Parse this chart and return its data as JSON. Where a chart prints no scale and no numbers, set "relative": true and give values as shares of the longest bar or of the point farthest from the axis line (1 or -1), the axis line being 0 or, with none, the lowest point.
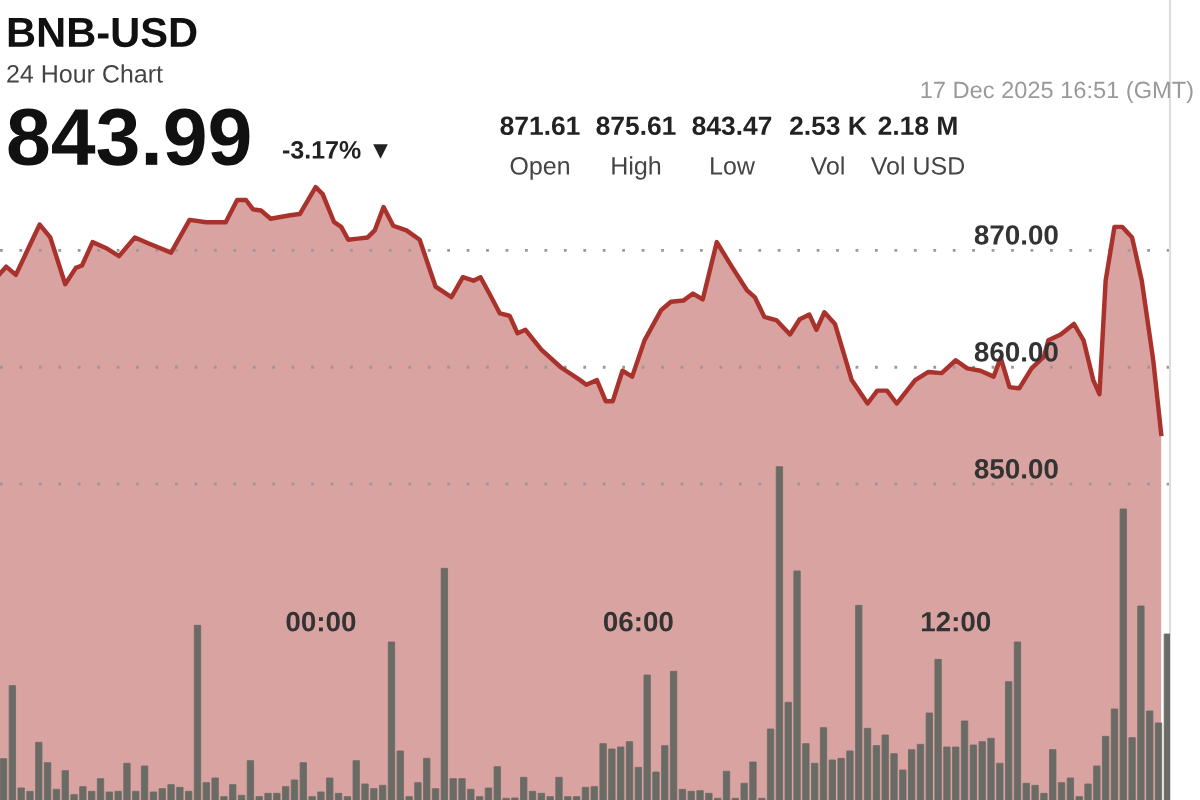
{
  "chart_data": [
    {
      "type": "area",
      "title": "BNB-USD",
      "subtitle": "24 Hour Chart",
      "annotations": [
        "843.99",
        "-3.17% ▼",
        "871.61",
        "Open",
        "875.61",
        "High",
        "843.47",
        "Low",
        "2.53 K",
        "Vol",
        "2.18 M",
        "Vol USD",
        "17 Dec 2025 16:51 (GMT)"
      ],
      "x": [
        "2025-12-16T17:56",
        "2025-12-16T18:03",
        "2025-12-16T18:14",
        "2025-12-16T18:29",
        "2025-12-16T18:41",
        "2025-12-16T18:53",
        "2025-12-16T19:10",
        "2025-12-16T19:22",
        "2025-12-16T19:29",
        "2025-12-16T19:41",
        "2025-12-16T19:56",
        "2025-12-16T20:11",
        "2025-12-16T20:29",
        "2025-12-16T20:44",
        "2025-12-16T21:10",
        "2025-12-16T21:31",
        "2025-12-16T21:50",
        "2025-12-16T22:12",
        "2025-12-16T22:25",
        "2025-12-16T22:35",
        "2025-12-16T22:43",
        "2025-12-16T22:52",
        "2025-12-16T23:03",
        "2025-12-16T23:25",
        "2025-12-16T23:36",
        "2025-12-16T23:54",
        "2025-12-17T00:02",
        "2025-12-17T00:15",
        "2025-12-17T00:23",
        "2025-12-17T00:31",
        "2025-12-17T00:42",
        "2025-12-17T00:53",
        "2025-12-17T01:01",
        "2025-12-17T01:11",
        "2025-12-17T01:22",
        "2025-12-17T01:37",
        "2025-12-17T01:52",
        "2025-12-17T02:10",
        "2025-12-17T02:28",
        "2025-12-17T02:41",
        "2025-12-17T02:53",
        "2025-12-17T03:01",
        "2025-12-17T03:11",
        "2025-12-17T03:23",
        "2025-12-17T03:34",
        "2025-12-17T03:43",
        "2025-12-17T03:52",
        "2025-12-17T04:10",
        "2025-12-17T04:32",
        "2025-12-17T04:54",
        "2025-12-17T05:01",
        "2025-12-17T05:13",
        "2025-12-17T05:23",
        "2025-12-17T05:31",
        "2025-12-17T05:42",
        "2025-12-17T05:53",
        "2025-12-17T06:07",
        "2025-12-17T06:26",
        "2025-12-17T06:37",
        "2025-12-17T06:51",
        "2025-12-17T07:02",
        "2025-12-17T07:13",
        "2025-12-17T07:29",
        "2025-12-17T07:46",
        "2025-12-17T08:03",
        "2025-12-17T08:12",
        "2025-12-17T08:23",
        "2025-12-17T08:37",
        "2025-12-17T08:52",
        "2025-12-17T09:03",
        "2025-12-17T09:14",
        "2025-12-17T09:22",
        "2025-12-17T09:31",
        "2025-12-17T09:43",
        "2025-12-17T10:02",
        "2025-12-17T10:20",
        "2025-12-17T10:31",
        "2025-12-17T10:42",
        "2025-12-17T10:53",
        "2025-12-17T11:14",
        "2025-12-17T11:29",
        "2025-12-17T11:44",
        "2025-12-17T12:00",
        "2025-12-17T12:13",
        "2025-12-17T12:28",
        "2025-12-17T12:43",
        "2025-12-17T12:51",
        "2025-12-17T13:01",
        "2025-12-17T13:12",
        "2025-12-17T13:26",
        "2025-12-17T13:40",
        "2025-12-17T13:45",
        "2025-12-17T13:59",
        "2025-12-17T14:14",
        "2025-12-17T14:25",
        "2025-12-17T14:36",
        "2025-12-17T14:43",
        "2025-12-17T14:50",
        "2025-12-17T15:00",
        "2025-12-17T15:09",
        "2025-12-17T15:20",
        "2025-12-17T15:31",
        "2025-12-17T15:44",
        "2025-12-17T15:53"
      ],
      "series": [
        {
          "color": "#a9322c",
          "values": [
            868.0,
            868.6,
            867.9,
            870.3,
            872.2,
            871.1,
            867.1,
            868.5,
            868.7,
            870.7,
            870.2,
            869.5,
            871.1,
            870.6,
            869.8,
            872.6,
            872.4,
            872.4,
            874.3,
            874.3,
            873.5,
            873.4,
            872.7,
            873.0,
            873.1,
            875.4,
            874.8,
            872.4,
            872.0,
            870.9,
            871.0,
            871.1,
            871.7,
            873.7,
            872.1,
            871.7,
            870.9,
            866.9,
            866.0,
            867.7,
            867.4,
            867.7,
            866.3,
            864.6,
            864.4,
            862.9,
            863.2,
            861.5,
            860.0,
            858.9,
            858.5,
            858.9,
            857.1,
            857.1,
            859.7,
            859.2,
            862.3,
            864.9,
            865.6,
            865.7,
            866.3,
            865.8,
            870.7,
            868.6,
            866.6,
            866.0,
            864.3,
            864.0,
            862.8,
            864.1,
            864.5,
            863.2,
            864.7,
            863.7,
            858.9,
            856.9,
            858.0,
            858.0,
            856.9,
            858.9,
            859.6,
            859.5,
            860.6,
            859.9,
            859.7,
            859.2,
            860.8,
            858.3,
            858.2,
            859.9,
            860.9,
            862.3,
            862.8,
            863.7,
            862.3,
            858.9,
            857.7,
            867.4,
            872.0,
            872.0,
            871.1,
            867.4,
            860.6,
            854.3
          ]
        }
      ],
      "xlim": [
        "2025-12-16T17:56",
        "2025-12-17T16:03"
      ],
      "ylim": [
        823,
        891.4
      ],
      "xticks": [
        {
          "value": "2025-12-16T18:00",
          "label": null
        },
        {
          "value": "2025-12-17T00:00",
          "label": "00:00"
        },
        {
          "value": "2025-12-17T06:00",
          "label": "06:00"
        },
        {
          "value": "2025-12-17T12:00",
          "label": "12:00"
        }
      ],
      "yticks": [
        {
          "value": 850,
          "label": "850.00"
        },
        {
          "value": 860,
          "label": "860.00"
        },
        {
          "value": 870,
          "label": "870.00"
        }
      ],
      "grid": "y",
      "line_style": "solid"
    },
    {
      "type": "bar",
      "relative": true,
      "x": [
        "2025-12-16T18:00",
        "2025-12-16T18:10",
        "2025-12-16T18:20",
        "2025-12-16T18:30",
        "2025-12-16T18:40",
        "2025-12-16T18:50",
        "2025-12-16T19:00",
        "2025-12-16T19:10",
        "2025-12-16T19:20",
        "2025-12-16T19:30",
        "2025-12-16T19:40",
        "2025-12-16T19:50",
        "2025-12-16T20:00",
        "2025-12-16T20:10",
        "2025-12-16T20:20",
        "2025-12-16T20:30",
        "2025-12-16T20:40",
        "2025-12-16T20:50",
        "2025-12-16T21:00",
        "2025-12-16T21:10",
        "2025-12-16T21:20",
        "2025-12-16T21:30",
        "2025-12-16T21:40",
        "2025-12-16T21:50",
        "2025-12-16T22:00",
        "2025-12-16T22:10",
        "2025-12-16T22:20",
        "2025-12-16T22:30",
        "2025-12-16T22:40",
        "2025-12-16T22:50",
        "2025-12-16T23:00",
        "2025-12-16T23:10",
        "2025-12-16T23:20",
        "2025-12-16T23:30",
        "2025-12-16T23:40",
        "2025-12-16T23:50",
        "2025-12-17T00:00",
        "2025-12-17T00:10",
        "2025-12-17T00:20",
        "2025-12-17T00:30",
        "2025-12-17T00:40",
        "2025-12-17T00:50",
        "2025-12-17T01:00",
        "2025-12-17T01:10",
        "2025-12-17T01:20",
        "2025-12-17T01:30",
        "2025-12-17T01:40",
        "2025-12-17T01:50",
        "2025-12-17T02:00",
        "2025-12-17T02:10",
        "2025-12-17T02:20",
        "2025-12-17T02:30",
        "2025-12-17T02:40",
        "2025-12-17T02:50",
        "2025-12-17T03:00",
        "2025-12-17T03:10",
        "2025-12-17T03:20",
        "2025-12-17T03:30",
        "2025-12-17T03:40",
        "2025-12-17T03:50",
        "2025-12-17T04:00",
        "2025-12-17T04:10",
        "2025-12-17T04:20",
        "2025-12-17T04:30",
        "2025-12-17T04:40",
        "2025-12-17T04:50",
        "2025-12-17T05:00",
        "2025-12-17T05:10",
        "2025-12-17T05:20",
        "2025-12-17T05:30",
        "2025-12-17T05:40",
        "2025-12-17T05:50",
        "2025-12-17T06:00",
        "2025-12-17T06:10",
        "2025-12-17T06:20",
        "2025-12-17T06:30",
        "2025-12-17T06:40",
        "2025-12-17T06:50",
        "2025-12-17T07:00",
        "2025-12-17T07:10",
        "2025-12-17T07:20",
        "2025-12-17T07:30",
        "2025-12-17T07:40",
        "2025-12-17T07:50",
        "2025-12-17T08:00",
        "2025-12-17T08:10",
        "2025-12-17T08:20",
        "2025-12-17T08:30",
        "2025-12-17T08:40",
        "2025-12-17T08:50",
        "2025-12-17T09:00",
        "2025-12-17T09:10",
        "2025-12-17T09:20",
        "2025-12-17T09:30",
        "2025-12-17T09:40",
        "2025-12-17T09:50",
        "2025-12-17T10:00",
        "2025-12-17T10:10",
        "2025-12-17T10:20",
        "2025-12-17T10:30",
        "2025-12-17T10:40",
        "2025-12-17T10:50",
        "2025-12-17T11:00",
        "2025-12-17T11:10",
        "2025-12-17T11:20",
        "2025-12-17T11:30",
        "2025-12-17T11:40",
        "2025-12-17T11:50",
        "2025-12-17T12:00",
        "2025-12-17T12:10",
        "2025-12-17T12:20",
        "2025-12-17T12:30",
        "2025-12-17T12:40",
        "2025-12-17T12:50",
        "2025-12-17T13:00",
        "2025-12-17T13:10",
        "2025-12-17T13:20",
        "2025-12-17T13:30",
        "2025-12-17T13:40",
        "2025-12-17T13:50",
        "2025-12-17T14:00",
        "2025-12-17T14:10",
        "2025-12-17T14:20",
        "2025-12-17T14:30",
        "2025-12-17T14:40",
        "2025-12-17T14:50",
        "2025-12-17T15:00",
        "2025-12-17T15:10",
        "2025-12-17T15:20",
        "2025-12-17T15:30",
        "2025-12-17T15:40",
        "2025-12-17T15:50",
        "2025-12-17T16:00"
      ],
      "series": [
        {
          "color": "#6b6b66",
          "values": [
            0.124,
            0.343,
            0.036,
            0.026,
            0.173,
            0.112,
            0.032,
            0.088,
            0.016,
            0.04,
            0.026,
            0.064,
            0.024,
            0.026,
            0.11,
            0.026,
            0.102,
            0.024,
            0.034,
            0.046,
            0.038,
            0.026,
            0.524,
            0.052,
            0.066,
            0.01,
            0.046,
            0.014,
            0.118,
            0.01,
            0.02,
            0.02,
            0.04,
            0.06,
            0.112,
            0.01,
            0.024,
            0.066,
            0.02,
            0.01,
            0.118,
            0.048,
            0.034,
            0.044,
            0.474,
            0.147,
            0.01,
            0.052,
            0.125,
            0.034,
            0.695,
            0.064,
            0.064,
            0.032,
            0.01,
            0.036,
            0.1,
            0.005,
            0.006,
            0.068,
            0.026,
            0.02,
            0.01,
            0.068,
            0.01,
            0.01,
            0.038,
            0.04,
            0.169,
            0.153,
            0.159,
            0.175,
            0.098,
            0.375,
            0.084,
            0.163,
            0.386,
            0.032,
            0.026,
            0.028,
            0.02,
            0.005,
            0.086,
            0.005,
            0.05,
            0.114,
            0.005,
            0.213,
            1,
            0.293,
            0.687,
            0.169,
            0.11,
            0.217,
            0.12,
            0.125,
            0.147,
            0.584,
            0.215,
            0.163,
            0.195,
            0.139,
            0.09,
            0.151,
            0.167,
            0.261,
            0.422,
            0.159,
            0.159,
            0.237,
            0.165,
            0.175,
            0.185,
            0.11,
            0.355,
            0.474,
            0.05,
            0.044,
            0.02,
            0.151,
            0.052,
            0.066,
            0.01,
            0.048,
            0.102,
            0.191,
            0.273,
            0.873,
            0.187,
            0.582,
            0.267,
            0.231,
            0.498
          ]
        }
      ],
      "xlim": [
        "2025-12-16T17:56",
        "2025-12-17T16:03"
      ]
    }
  ]
}
